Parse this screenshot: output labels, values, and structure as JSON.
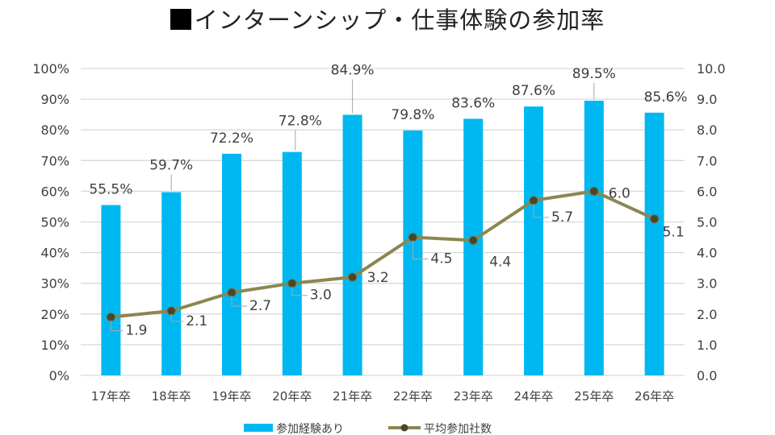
{
  "chart_data": {
    "type": "bar+line",
    "title": "■インターンシップ・仕事体験の参加率",
    "title_text": "インターンシップ・仕事体験の参加率",
    "categories": [
      "17年卒",
      "18年卒",
      "19年卒",
      "20年卒",
      "21年卒",
      "22年卒",
      "23年卒",
      "24年卒",
      "25年卒",
      "26年卒"
    ],
    "series": [
      {
        "name": "参加経験あり",
        "type": "bar",
        "axis": "left",
        "color": "#00B8F1",
        "values": [
          55.5,
          59.7,
          72.2,
          72.8,
          84.9,
          79.8,
          83.6,
          87.6,
          89.5,
          85.6
        ],
        "labels": [
          "55.5%",
          "59.7%",
          "72.2%",
          "72.8%",
          "84.9%",
          "79.8%",
          "83.6%",
          "87.6%",
          "89.5%",
          "85.6%"
        ]
      },
      {
        "name": "平均参加社数",
        "type": "line",
        "axis": "right",
        "color": "#8C8650",
        "marker_color": "#4A4628",
        "values": [
          1.9,
          2.1,
          2.7,
          3.0,
          3.2,
          4.5,
          4.4,
          5.7,
          6.0,
          5.1
        ],
        "labels": [
          "1.9",
          "2.1",
          "2.7",
          "3.0",
          "3.2",
          "4.5",
          "4.4",
          "5.7",
          "6.0",
          "5.1"
        ]
      }
    ],
    "y_left": {
      "ylim": [
        0,
        100
      ],
      "ticks": [
        "0%",
        "10%",
        "20%",
        "30%",
        "40%",
        "50%",
        "60%",
        "70%",
        "80%",
        "90%",
        "100%"
      ]
    },
    "y_right": {
      "ylim": [
        0,
        10
      ],
      "ticks": [
        "0.0",
        "1.0",
        "2.0",
        "3.0",
        "4.0",
        "5.0",
        "6.0",
        "7.0",
        "8.0",
        "9.0",
        "10.0"
      ]
    },
    "grid": true,
    "legend_position": "bottom",
    "xlabel": "",
    "ylabel": ""
  }
}
